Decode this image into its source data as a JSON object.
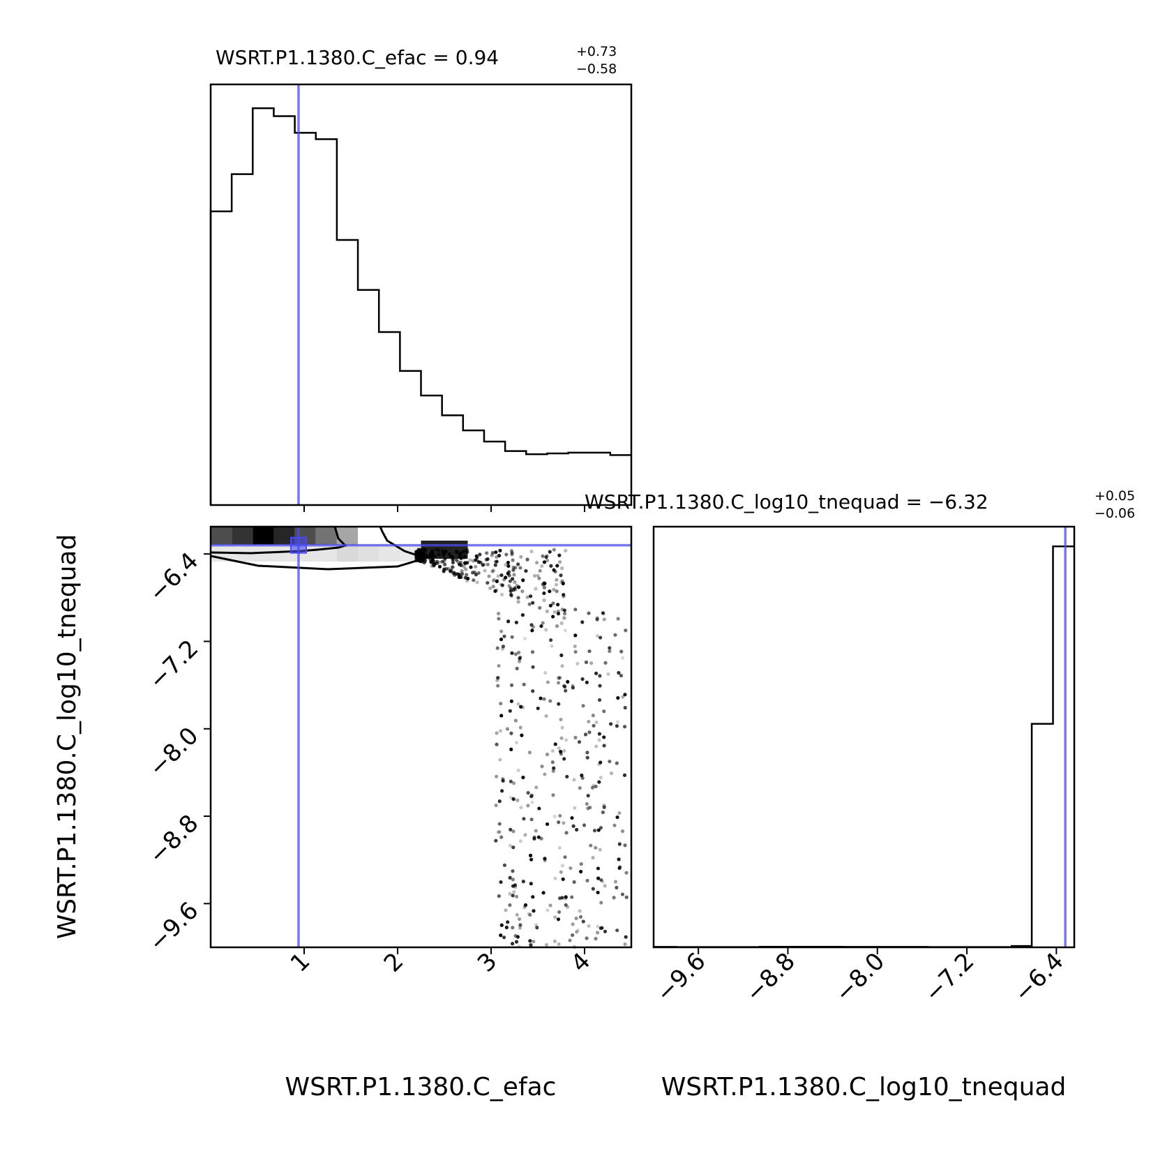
{
  "chart_data": {
    "type": "scatter",
    "subtype": "corner-plot",
    "parameters": [
      "WSRT.P1.1380.C_efac",
      "WSRT.P1.1380.C_log10_tnequad"
    ],
    "truth": {
      "efac": 0.94,
      "log10_tnequad": -6.32
    },
    "truth_color": "#4a4aee",
    "panels": {
      "efac_hist": {
        "title_main": "WSRT.P1.1380.C_efac = 0.94",
        "title_sup": "+0.73",
        "title_sub": "−0.58",
        "xlim": [
          0.0,
          4.5
        ],
        "bin_width": 0.225,
        "counts": [
          370,
          417,
          500,
          490,
          469,
          461,
          334,
          271,
          218,
          169,
          138,
          113,
          94,
          80,
          68,
          64,
          65,
          66,
          66,
          63
        ]
      },
      "tnequad_hist": {
        "title_main": "WSRT.P1.1380.C_log10_tnequad = −6.32",
        "title_sup": "+0.05",
        "title_sub": "−0.06",
        "xlim": [
          -10.0,
          -6.24
        ],
        "bins": [
          {
            "x0": -10.0,
            "x1": -9.8,
            "c": 0.3
          },
          {
            "x0": -9.8,
            "x1": -9.05,
            "c": 0.2
          },
          {
            "x0": -9.05,
            "x1": -8.3,
            "c": 0.4
          },
          {
            "x0": -8.3,
            "x1": -7.55,
            "c": 0.3
          },
          {
            "x0": -7.55,
            "x1": -6.8,
            "c": 0.2
          },
          {
            "x0": -6.8,
            "x1": -6.62,
            "c": 1.0
          },
          {
            "x0": -6.62,
            "x1": -6.43,
            "c": 170
          },
          {
            "x0": -6.43,
            "x1": -6.24,
            "c": 305
          }
        ],
        "ymax": 320
      },
      "joint": {
        "xlim": [
          0.0,
          4.5
        ],
        "ylim": [
          -10.0,
          -6.15
        ],
        "density_cells": [
          {
            "x0": 0.0,
            "v": 0.7
          },
          {
            "x0": 0.225,
            "v": 0.8
          },
          {
            "x0": 0.45,
            "v": 1.0
          },
          {
            "x0": 0.675,
            "v": 0.85
          },
          {
            "x0": 0.9,
            "v": 0.7
          },
          {
            "x0": 1.125,
            "v": 0.55
          },
          {
            "x0": 1.35,
            "v": 0.35
          }
        ],
        "lower_band": [
          {
            "x0": 1.125,
            "v": 0.1
          },
          {
            "x0": 1.35,
            "v": 0.15
          },
          {
            "x0": 1.575,
            "v": 0.12
          },
          {
            "x0": 1.8,
            "v": 0.1
          },
          {
            "x0": 2.025,
            "v": 0.08
          }
        ]
      }
    },
    "axes": {
      "efac_ticks": [
        "1",
        "2",
        "3",
        "4"
      ],
      "efac_tick_values": [
        1,
        2,
        3,
        4
      ],
      "tnequad_ticks": [
        "−9.6",
        "−8.8",
        "−8.0",
        "−7.2",
        "−6.4"
      ],
      "tnequad_tick_values": [
        -9.6,
        -8.8,
        -8.0,
        -7.2,
        -6.4
      ],
      "xlabel_left": "WSRT.P1.1380.C_efac",
      "xlabel_right": "WSRT.P1.1380.C_log10_tnequad",
      "ylabel": "WSRT.P1.1380.C_log10_tnequad"
    }
  }
}
